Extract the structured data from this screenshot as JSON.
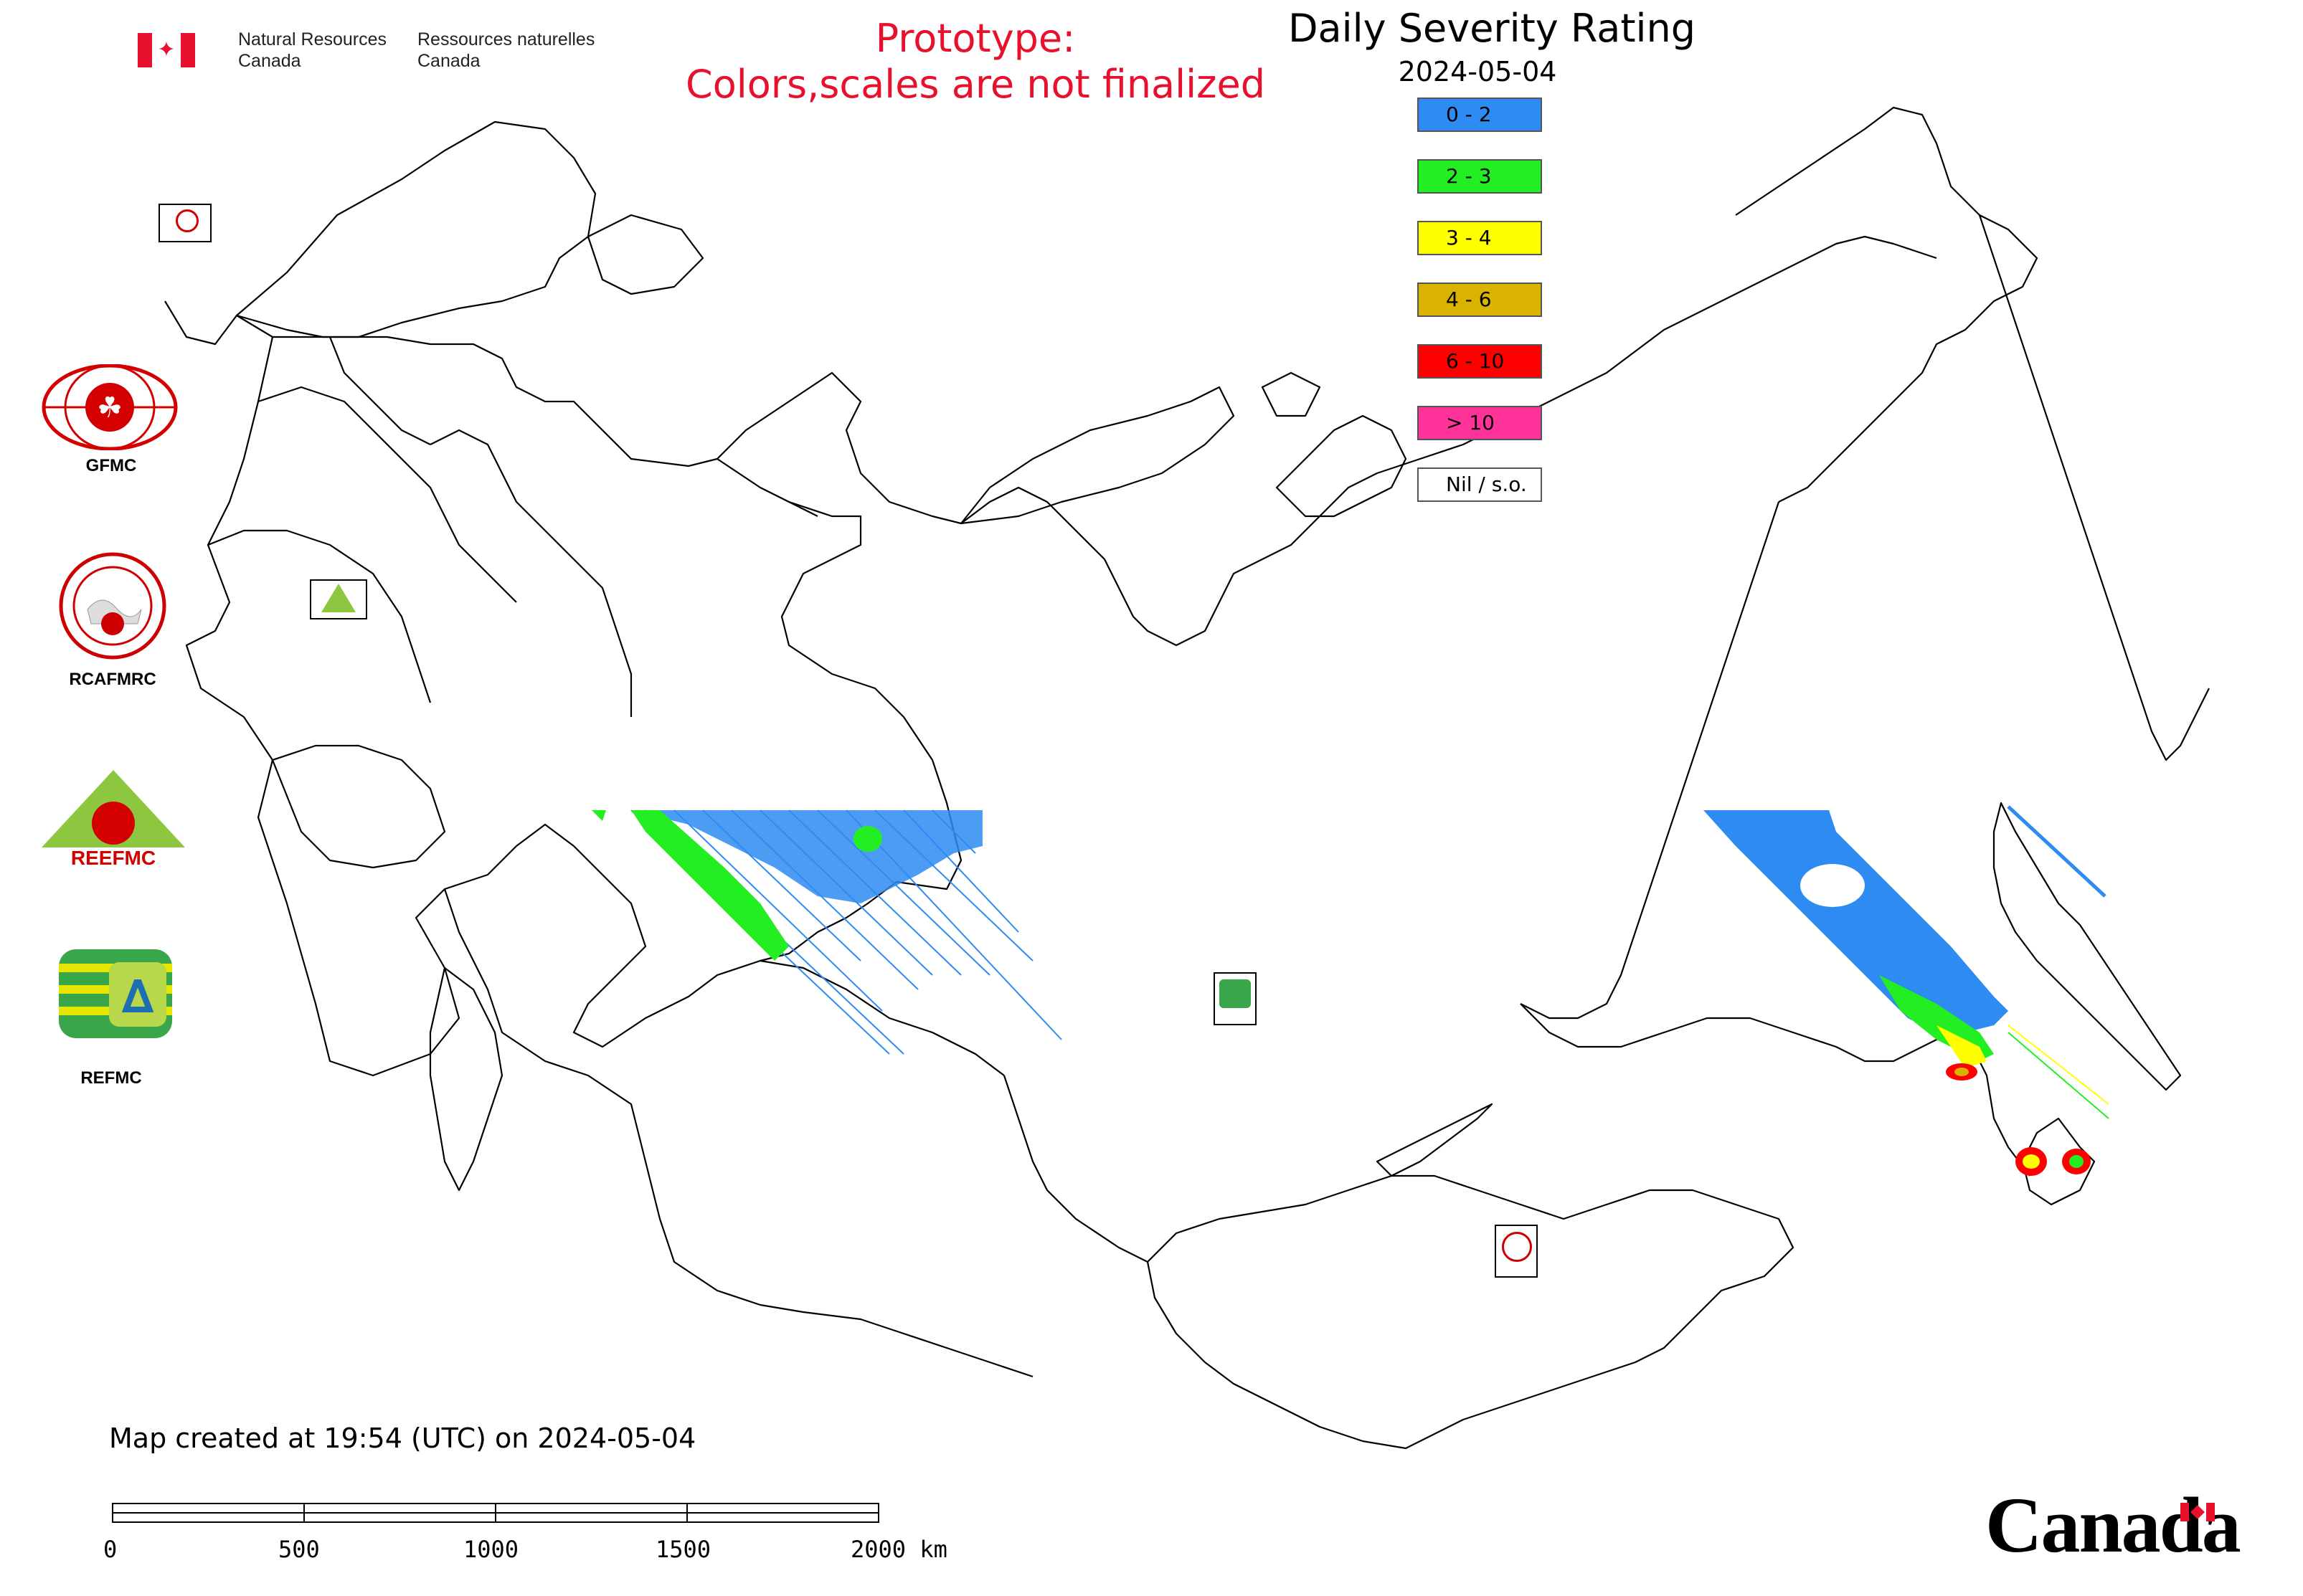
{
  "header": {
    "nrcan_en_line1": "Natural Resources",
    "nrcan_en_line2": "Canada",
    "nrcan_fr_line1": "Ressources naturelles",
    "nrcan_fr_line2": "Canada",
    "prototype_line1": "Prototype:",
    "prototype_line2": "Colors,scales are not finalized",
    "title": "Daily Severity Rating",
    "date": "2024-05-04"
  },
  "legend": {
    "items": [
      {
        "label": "0 - 2",
        "color": "#2e8bf2"
      },
      {
        "label": "2 - 3",
        "color": "#22ee22"
      },
      {
        "label": "3 - 4",
        "color": "#ffff00"
      },
      {
        "label": "4 - 6",
        "color": "#d9b300"
      },
      {
        "label": "6 - 10",
        "color": "#ff0000"
      },
      {
        "label": "> 10",
        "color": "#ff3399"
      },
      {
        "label": "Nil / s.o.",
        "color": "#ffffff"
      }
    ]
  },
  "logos": {
    "gfmc": "GFMC",
    "rcafmrc": "RCAFMRC",
    "reefmc": "REEFMC",
    "refmc": "REFMC"
  },
  "footer": {
    "map_created": "Map created at 19:54 (UTC) on 2024-05-04",
    "scale_labels": [
      "0",
      "500",
      "1000",
      "1500",
      "2000 km"
    ],
    "canada_wordmark": "Canada"
  },
  "colors": {
    "accent_red": "#e8112d",
    "flag_red": "#e8112d"
  }
}
